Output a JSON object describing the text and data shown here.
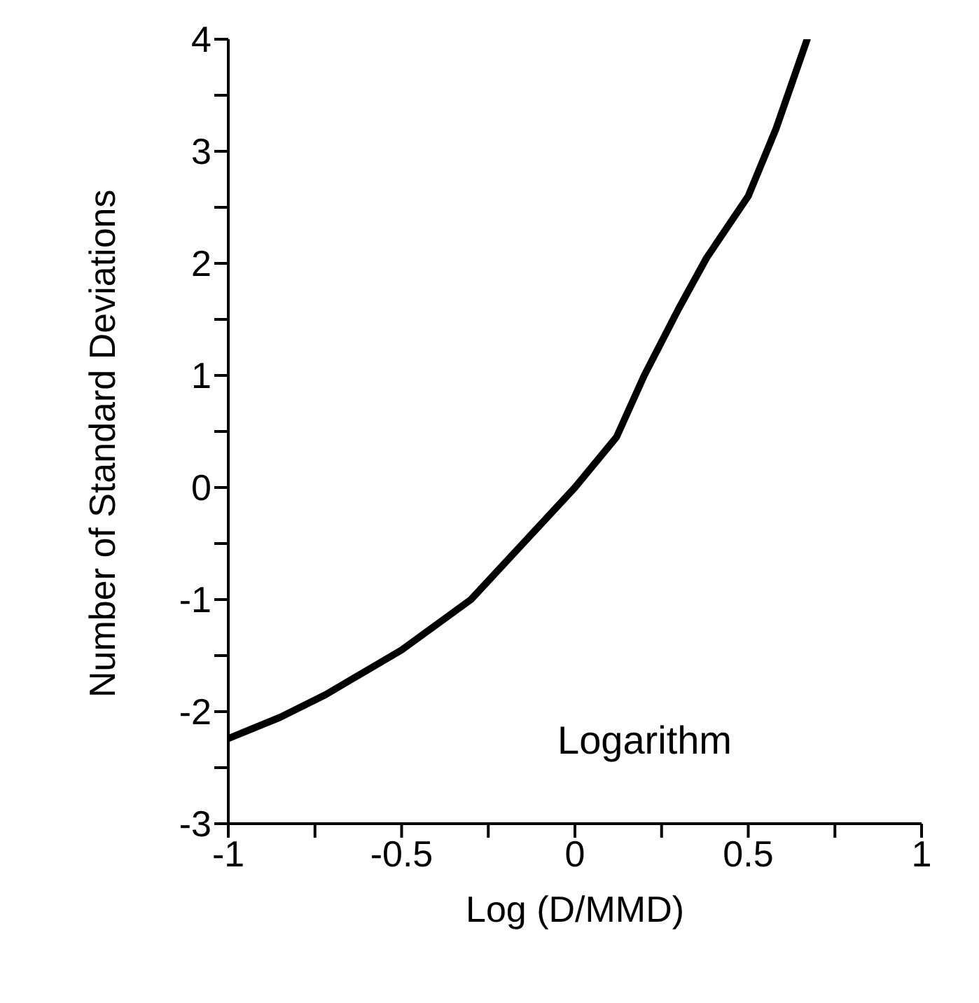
{
  "chart_data": {
    "type": "line",
    "xlabel": "Log (D/MMD)",
    "ylabel": "Number of Standard Deviations",
    "annotations": [
      "Logarithm"
    ],
    "x": [
      -1,
      -0.85,
      -0.72,
      -0.5,
      -0.3,
      -0.12,
      0,
      0.12,
      0.2,
      0.3,
      0.38,
      0.5,
      0.58,
      0.67
    ],
    "series": [
      {
        "color": "#000000",
        "values": [
          -2.24,
          -2.05,
          -1.85,
          -1.45,
          -1.0,
          -0.4,
          0,
          0.45,
          1.0,
          1.6,
          2.05,
          2.6,
          3.2,
          4
        ]
      }
    ],
    "xlim": [
      -1,
      1
    ],
    "ylim": [
      -3,
      4
    ],
    "xticks": [
      -1,
      {
        "value": -0.75,
        "label": null
      },
      -0.5,
      {
        "value": -0.25,
        "label": null
      },
      0,
      {
        "value": 0.25,
        "label": null
      },
      0.5,
      {
        "value": 0.75,
        "label": null
      },
      1
    ],
    "yticks": [
      -3,
      {
        "value": -2.5,
        "label": null
      },
      -2,
      {
        "value": -1.5,
        "label": null
      },
      -1,
      {
        "value": -0.5,
        "label": null
      },
      0,
      {
        "value": 0.5,
        "label": null
      },
      1,
      {
        "value": 1.5,
        "label": null
      },
      2,
      {
        "value": 2.5,
        "label": null
      },
      3,
      {
        "value": 3.5,
        "label": null
      },
      4
    ],
    "grid": false,
    "legend": false,
    "marker": "none",
    "line_style": "solid"
  }
}
